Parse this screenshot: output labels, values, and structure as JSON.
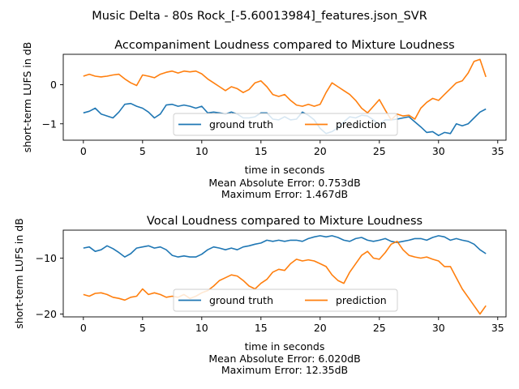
{
  "suptitle": "Music Delta - 80s Rock_[-5.60013984]_features.json_SVR",
  "legend": {
    "ground_truth": "ground truth",
    "prediction": "prediction"
  },
  "colors": {
    "ground_truth": "#1f77b4",
    "prediction": "#ff7f0e"
  },
  "chart_data": [
    {
      "type": "line",
      "title": "Accompaniment Loudness compared to Mixture Loudness",
      "xlabel": "time in seconds",
      "ylabel": "short-term LUFS in dB",
      "xlim": [
        -1.7,
        35.7
      ],
      "ylim": [
        -1.42,
        0.78
      ],
      "xticks": [
        0,
        5,
        10,
        15,
        20,
        25,
        30,
        35
      ],
      "yticks": [
        0,
        -1
      ],
      "ytick_labels": [
        "0",
        "−1"
      ],
      "grid": false,
      "legend_position": "lower center",
      "error_lines": [
        "Mean Absolute Error: 0.753dB",
        "Maximum Error: 1.467dB"
      ],
      "series": [
        {
          "name": "ground truth",
          "x": [
            0,
            0.5,
            1,
            1.5,
            2,
            2.5,
            3,
            3.5,
            4,
            4.5,
            5,
            5.5,
            6,
            6.5,
            7,
            7.5,
            8,
            8.5,
            9,
            9.5,
            10,
            10.5,
            11,
            11.5,
            12,
            12.5,
            13,
            13.5,
            14,
            14.5,
            15,
            15.5,
            16,
            16.5,
            17,
            17.5,
            18,
            18.5,
            19,
            19.5,
            20,
            20.5,
            21,
            21.5,
            22,
            22.5,
            23,
            23.5,
            24,
            24.5,
            25,
            25.5,
            26,
            26.5,
            27,
            27.5,
            28,
            28.5,
            29,
            29.5,
            30,
            30.5,
            31,
            31.5,
            32,
            32.5,
            33,
            33.5,
            34
          ],
          "y": [
            -0.72,
            -0.68,
            -0.6,
            -0.75,
            -0.8,
            -0.85,
            -0.7,
            -0.5,
            -0.48,
            -0.55,
            -0.6,
            -0.7,
            -0.85,
            -0.75,
            -0.52,
            -0.5,
            -0.55,
            -0.52,
            -0.55,
            -0.6,
            -0.55,
            -0.72,
            -0.7,
            -0.72,
            -0.75,
            -0.7,
            -0.75,
            -0.85,
            -0.85,
            -0.82,
            -0.72,
            -0.72,
            -0.88,
            -0.9,
            -0.82,
            -0.9,
            -0.88,
            -0.7,
            -0.78,
            -0.9,
            -1.12,
            -1.25,
            -1.2,
            -1.1,
            -0.95,
            -0.82,
            -0.85,
            -0.78,
            -0.8,
            -0.9,
            -1.02,
            -0.9,
            -0.9,
            -0.88,
            -0.85,
            -0.82,
            -0.95,
            -1.08,
            -1.22,
            -1.2,
            -1.3,
            -1.22,
            -1.25,
            -1.0,
            -1.05,
            -1.0,
            -0.85,
            -0.7,
            -0.62
          ]
        },
        {
          "name": "prediction",
          "x": [
            0,
            0.5,
            1,
            1.5,
            2,
            2.5,
            3,
            3.5,
            4,
            4.5,
            5,
            5.5,
            6,
            6.5,
            7,
            7.5,
            8,
            8.5,
            9,
            9.5,
            10,
            10.5,
            11,
            11.5,
            12,
            12.5,
            13,
            13.5,
            14,
            14.5,
            15,
            15.5,
            16,
            16.5,
            17,
            17.5,
            18,
            18.5,
            19,
            19.5,
            20,
            20.5,
            21,
            21.5,
            22,
            22.5,
            23,
            23.5,
            24,
            24.5,
            25,
            25.5,
            26,
            26.5,
            27,
            27.5,
            28,
            28.5,
            29,
            29.5,
            30,
            30.5,
            31,
            31.5,
            32,
            32.5,
            33,
            33.5,
            34
          ],
          "y": [
            0.22,
            0.27,
            0.22,
            0.2,
            0.22,
            0.25,
            0.27,
            0.15,
            0.05,
            -0.02,
            0.25,
            0.22,
            0.18,
            0.27,
            0.32,
            0.35,
            0.3,
            0.35,
            0.33,
            0.35,
            0.28,
            0.15,
            0.05,
            -0.05,
            -0.15,
            -0.05,
            -0.1,
            -0.2,
            -0.12,
            0.05,
            0.1,
            -0.05,
            -0.25,
            -0.3,
            -0.25,
            -0.4,
            -0.52,
            -0.55,
            -0.5,
            -0.55,
            -0.5,
            -0.2,
            0.05,
            -0.05,
            -0.15,
            -0.25,
            -0.4,
            -0.6,
            -0.72,
            -0.55,
            -0.38,
            -0.65,
            -0.9,
            -0.75,
            -0.8,
            -0.78,
            -0.88,
            -0.6,
            -0.45,
            -0.35,
            -0.4,
            -0.25,
            -0.1,
            0.05,
            0.1,
            0.3,
            0.6,
            0.65,
            0.2
          ]
        }
      ]
    },
    {
      "type": "line",
      "title": "Vocal Loudness compared to Mixture Loudness",
      "xlabel": "time in seconds",
      "ylabel": "short-term LUFS in dB",
      "xlim": [
        -1.7,
        35.7
      ],
      "ylim": [
        -20.5,
        -5.0
      ],
      "xticks": [
        0,
        5,
        10,
        15,
        20,
        25,
        30,
        35
      ],
      "yticks": [
        -10,
        -20
      ],
      "ytick_labels": [
        "−10",
        "−20"
      ],
      "grid": false,
      "legend_position": "lower center",
      "error_lines": [
        "Mean Absolute Error: 6.020dB",
        "Maximum Error: 12.35dB"
      ],
      "series": [
        {
          "name": "ground truth",
          "x": [
            0,
            0.5,
            1,
            1.5,
            2,
            2.5,
            3,
            3.5,
            4,
            4.5,
            5,
            5.5,
            6,
            6.5,
            7,
            7.5,
            8,
            8.5,
            9,
            9.5,
            10,
            10.5,
            11,
            11.5,
            12,
            12.5,
            13,
            13.5,
            14,
            14.5,
            15,
            15.5,
            16,
            16.5,
            17,
            17.5,
            18,
            18.5,
            19,
            19.5,
            20,
            20.5,
            21,
            21.5,
            22,
            22.5,
            23,
            23.5,
            24,
            24.5,
            25,
            25.5,
            26,
            26.5,
            27,
            27.5,
            28,
            28.5,
            29,
            29.5,
            30,
            30.5,
            31,
            31.5,
            32,
            32.5,
            33,
            33.5,
            34
          ],
          "y": [
            -8.2,
            -8.0,
            -8.8,
            -8.5,
            -7.8,
            -8.3,
            -9.0,
            -9.8,
            -9.2,
            -8.2,
            -8.0,
            -7.8,
            -8.2,
            -8.0,
            -8.5,
            -9.5,
            -9.8,
            -9.6,
            -9.8,
            -9.8,
            -9.3,
            -8.5,
            -8.0,
            -8.2,
            -8.5,
            -8.2,
            -8.5,
            -8.0,
            -7.8,
            -7.5,
            -7.3,
            -6.8,
            -7.0,
            -6.8,
            -7.0,
            -6.8,
            -6.8,
            -7.0,
            -6.5,
            -6.2,
            -6.0,
            -6.2,
            -6.0,
            -6.3,
            -6.8,
            -7.0,
            -6.5,
            -6.3,
            -6.8,
            -7.0,
            -6.8,
            -6.5,
            -7.0,
            -7.2,
            -7.0,
            -6.8,
            -6.5,
            -6.5,
            -6.8,
            -6.3,
            -6.0,
            -6.2,
            -6.8,
            -6.5,
            -6.8,
            -7.0,
            -7.5,
            -8.5,
            -9.2
          ]
        },
        {
          "name": "prediction",
          "x": [
            0,
            0.5,
            1,
            1.5,
            2,
            2.5,
            3,
            3.5,
            4,
            4.5,
            5,
            5.5,
            6,
            6.5,
            7,
            7.5,
            8,
            8.5,
            9,
            9.5,
            10,
            10.5,
            11,
            11.5,
            12,
            12.5,
            13,
            13.5,
            14,
            14.5,
            15,
            15.5,
            16,
            16.5,
            17,
            17.5,
            18,
            18.5,
            19,
            19.5,
            20,
            20.5,
            21,
            21.5,
            22,
            22.5,
            23,
            23.5,
            24,
            24.5,
            25,
            25.5,
            26,
            26.5,
            27,
            27.5,
            28,
            28.5,
            29,
            29.5,
            30,
            30.5,
            31,
            31.5,
            32,
            32.5,
            33,
            33.5,
            34
          ],
          "y": [
            -16.5,
            -16.8,
            -16.3,
            -16.2,
            -16.5,
            -17.0,
            -17.2,
            -17.5,
            -17.0,
            -16.8,
            -15.5,
            -16.5,
            -16.2,
            -16.5,
            -17.0,
            -16.8,
            -17.0,
            -16.5,
            -17.2,
            -16.8,
            -16.2,
            -15.8,
            -15.0,
            -14.0,
            -13.5,
            -13.0,
            -13.2,
            -14.0,
            -15.0,
            -15.5,
            -14.5,
            -13.8,
            -12.5,
            -12.0,
            -12.2,
            -11.0,
            -10.2,
            -10.5,
            -10.3,
            -10.5,
            -11.0,
            -11.5,
            -13.0,
            -14.0,
            -14.5,
            -12.5,
            -11.0,
            -9.5,
            -8.8,
            -10.0,
            -10.2,
            -9.0,
            -7.5,
            -7.0,
            -8.5,
            -9.5,
            -9.8,
            -10.0,
            -9.8,
            -10.2,
            -10.5,
            -11.5,
            -11.5,
            -13.5,
            -15.5,
            -17.0,
            -18.5,
            -20.0,
            -18.5
          ]
        }
      ]
    }
  ]
}
